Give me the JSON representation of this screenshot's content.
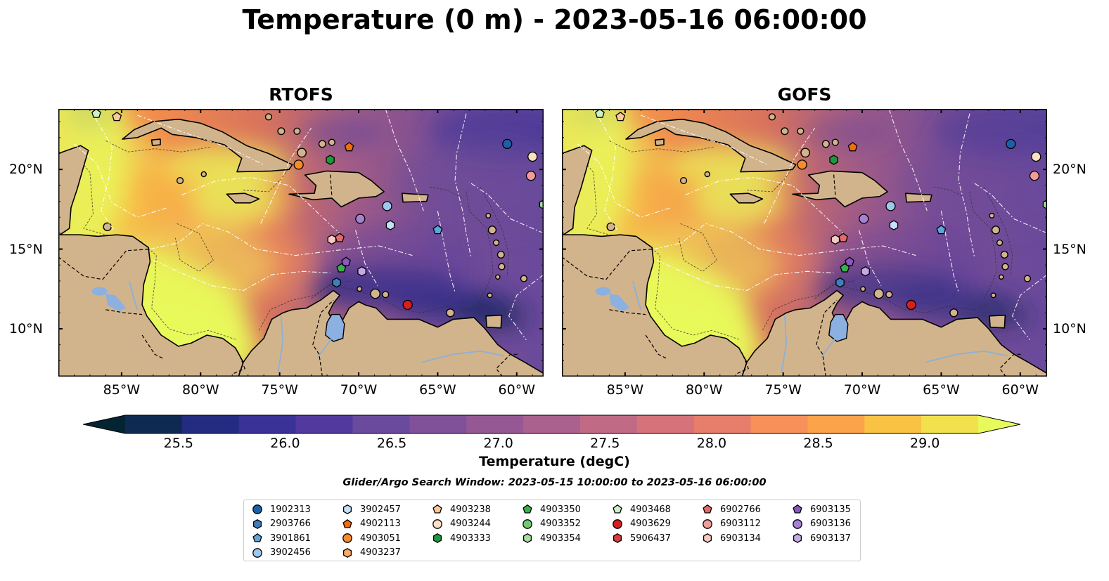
{
  "title": "Temperature (0 m) - 2023-05-16 06:00:00",
  "panels": [
    {
      "title": "RTOFS"
    },
    {
      "title": "GOFS"
    }
  ],
  "map": {
    "lon_range": [
      -89,
      -58.3
    ],
    "lat_range": [
      7,
      23.8
    ],
    "lon_ticks": [
      "85°W",
      "80°W",
      "75°W",
      "70°W",
      "65°W",
      "60°W"
    ],
    "lon_tick_values": [
      -85,
      -80,
      -75,
      -70,
      -65,
      -60
    ],
    "lat_ticks": [
      "20°N",
      "15°N",
      "10°N"
    ],
    "lat_tick_values": [
      20,
      15,
      10
    ],
    "land_color": "#d2b48c",
    "lake_color": "#8cb0e0"
  },
  "colorbar": {
    "label": "Temperature (degC)",
    "ticks": [
      "25.5",
      "26.0",
      "26.5",
      "27.0",
      "27.5",
      "28.0",
      "28.5",
      "29.0"
    ],
    "tick_values": [
      25.5,
      26.0,
      26.5,
      27.0,
      27.5,
      28.0,
      28.5,
      29.0
    ],
    "min": 25.25,
    "max": 29.25,
    "extend": "both",
    "colors": [
      "#042333",
      "#0f2a52",
      "#232c80",
      "#3a3297",
      "#52399e",
      "#6a4a9c",
      "#805098",
      "#955894",
      "#ab618e",
      "#c06a85",
      "#d5727a",
      "#e77d6b",
      "#f7905a",
      "#faa34a",
      "#f9c245",
      "#f2e14d",
      "#e8fa5b"
    ]
  },
  "search_window": "Glider/Argo Search Window: 2023-05-15 10:00:00 to 2023-05-16 06:00:00",
  "legend": {
    "columns": [
      [
        {
          "id": "1902313",
          "marker": "circle",
          "color": "#1f5fa8"
        },
        {
          "id": "2903766",
          "marker": "hexagon",
          "color": "#3f7fc0"
        },
        {
          "id": "3901861",
          "marker": "pentagon",
          "color": "#5ea5dc"
        },
        {
          "id": "3902456",
          "marker": "circle",
          "color": "#9cc8ee"
        }
      ],
      [
        {
          "id": "3902457",
          "marker": "hexagon",
          "color": "#c6e0f8"
        },
        {
          "id": "4902113",
          "marker": "pentagon",
          "color": "#f06e0c"
        },
        {
          "id": "4903051",
          "marker": "circle",
          "color": "#fb8b28"
        },
        {
          "id": "4903237",
          "marker": "hexagon",
          "color": "#fdaa60"
        }
      ],
      [
        {
          "id": "4903238",
          "marker": "pentagon",
          "color": "#fdc99a"
        },
        {
          "id": "4903244",
          "marker": "circle",
          "color": "#fde0c4"
        },
        {
          "id": "4903333",
          "marker": "hexagon",
          "color": "#1a9a3a"
        }
      ],
      [
        {
          "id": "4903350",
          "marker": "pentagon",
          "color": "#3ab04a"
        },
        {
          "id": "4903352",
          "marker": "circle",
          "color": "#72c872"
        },
        {
          "id": "4903354",
          "marker": "hexagon",
          "color": "#a6dea0"
        }
      ],
      [
        {
          "id": "4903468",
          "marker": "pentagon",
          "color": "#cdf1c6"
        },
        {
          "id": "4903629",
          "marker": "circle",
          "color": "#d62020"
        },
        {
          "id": "5906437",
          "marker": "hexagon",
          "color": "#dc3c3c"
        }
      ],
      [
        {
          "id": "6902766",
          "marker": "pentagon",
          "color": "#e46a6a"
        },
        {
          "id": "6903112",
          "marker": "circle",
          "color": "#f09c98"
        },
        {
          "id": "6903134",
          "marker": "hexagon",
          "color": "#fac8c4"
        }
      ],
      [
        {
          "id": "6903135",
          "marker": "pentagon",
          "color": "#8a58c0"
        },
        {
          "id": "6903136",
          "marker": "circle",
          "color": "#a680d2"
        },
        {
          "id": "6903137",
          "marker": "hexagon",
          "color": "#c6aae6"
        }
      ]
    ]
  },
  "floats": [
    {
      "id": "4903468",
      "marker": "pentagon",
      "color": "#cdf1c6",
      "lon": -86.6,
      "lat": 23.5
    },
    {
      "id": "4903238",
      "marker": "pentagon",
      "color": "#fdc99a",
      "lon": -85.3,
      "lat": 23.3
    },
    {
      "id": "1902313",
      "marker": "circle",
      "color": "#1f5fa8",
      "lon": -60.6,
      "lat": 21.6
    },
    {
      "id": "4903244",
      "marker": "circle",
      "color": "#fde0c4",
      "lon": -59.0,
      "lat": 20.8
    },
    {
      "id": "6903112",
      "marker": "circle",
      "color": "#f09c98",
      "lon": -59.1,
      "lat": 19.6
    },
    {
      "id": "4902113",
      "marker": "pentagon",
      "color": "#f06e0c",
      "lon": -70.6,
      "lat": 21.4
    },
    {
      "id": "4903051",
      "marker": "circle",
      "color": "#fb8b28",
      "lon": -73.8,
      "lat": 20.3
    },
    {
      "id": "4903333",
      "marker": "hexagon",
      "color": "#1a9a3a",
      "lon": -71.8,
      "lat": 20.6
    },
    {
      "id": "3902456",
      "marker": "circle",
      "color": "#9cc8ee",
      "lon": -68.2,
      "lat": 17.7
    },
    {
      "id": "3902457",
      "marker": "hexagon",
      "color": "#c6e0f8",
      "lon": -68.0,
      "lat": 16.5
    },
    {
      "id": "6903136",
      "marker": "circle",
      "color": "#a680d2",
      "lon": -69.9,
      "lat": 16.9
    },
    {
      "id": "3901861",
      "marker": "pentagon",
      "color": "#5ea5dc",
      "lon": -65.0,
      "lat": 16.2
    },
    {
      "id": "4903354",
      "marker": "hexagon",
      "color": "#a6dea0",
      "lon": -58.3,
      "lat": 17.8
    },
    {
      "id": "6903134",
      "marker": "hexagon",
      "color": "#fac8c4",
      "lon": -71.7,
      "lat": 15.6
    },
    {
      "id": "6902766",
      "marker": "pentagon",
      "color": "#e46a6a",
      "lon": -71.2,
      "lat": 15.7
    },
    {
      "id": "6903135",
      "marker": "pentagon",
      "color": "#8a58c0",
      "lon": -70.8,
      "lat": 14.2
    },
    {
      "id": "6903137",
      "marker": "hexagon",
      "color": "#c6aae6",
      "lon": -69.8,
      "lat": 13.6
    },
    {
      "id": "4903350",
      "marker": "pentagon",
      "color": "#3ab04a",
      "lon": -71.1,
      "lat": 13.8
    },
    {
      "id": "2903766",
      "marker": "hexagon",
      "color": "#3f7fc0",
      "lon": -71.4,
      "lat": 12.9
    },
    {
      "id": "4903629",
      "marker": "circle",
      "color": "#d62020",
      "lon": -66.9,
      "lat": 11.5
    }
  ]
}
